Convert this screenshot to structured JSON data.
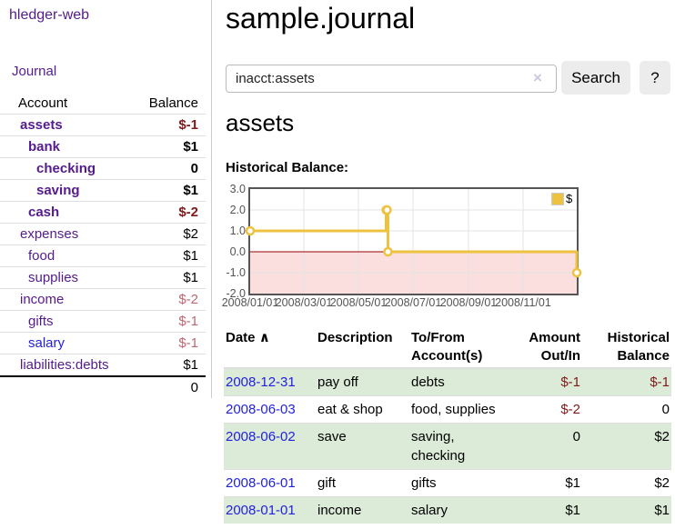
{
  "colors": {
    "link_purple": "#551b8d",
    "link_blue": "#2222dd",
    "negative": "#7f1a1a",
    "negative_dim": "#c06670",
    "row_stripe_green": "#dcead8",
    "chart_line_gold": "#EDC240",
    "chart_negative_fill": "#fbdfdf",
    "chart_zero_line": "#990000"
  },
  "app": {
    "title": "hledger-web"
  },
  "sidebar": {
    "journal_link": "Journal",
    "accounts": {
      "header": {
        "account": "Account",
        "balance": "Balance"
      },
      "rows": [
        {
          "name": "assets",
          "depth": 1,
          "bold": true,
          "balance": "$-1",
          "style": "neg"
        },
        {
          "name": "bank",
          "depth": 2,
          "bold": true,
          "balance": "$1",
          "style": "pos"
        },
        {
          "name": "checking",
          "depth": 3,
          "bold": true,
          "balance": "0",
          "style": "pos"
        },
        {
          "name": "saving",
          "depth": 3,
          "bold": true,
          "balance": "$1",
          "style": "pos"
        },
        {
          "name": "cash",
          "depth": 2,
          "bold": true,
          "balance": "$-2",
          "style": "neg"
        },
        {
          "name": "expenses",
          "depth": 1,
          "bold": false,
          "balance": "$2",
          "style": "pos"
        },
        {
          "name": "food",
          "depth": 2,
          "bold": false,
          "balance": "$1",
          "style": "pos"
        },
        {
          "name": "supplies",
          "depth": 2,
          "bold": false,
          "balance": "$1",
          "style": "pos"
        },
        {
          "name": "income",
          "depth": 1,
          "bold": false,
          "balance": "$-2",
          "style": "neg-dim"
        },
        {
          "name": "gifts",
          "depth": 2,
          "bold": false,
          "balance": "$-1",
          "style": "neg-dim"
        },
        {
          "name": "salary",
          "depth": 2,
          "bold": false,
          "balance": "$-1",
          "style": "neg-dim",
          "link": "blue"
        },
        {
          "name": "liabilities:debts",
          "depth": 1,
          "bold": false,
          "balance": "$1",
          "style": "pos"
        }
      ],
      "total": "0"
    }
  },
  "main": {
    "title": "sample.journal",
    "search": {
      "value": "inacct:assets",
      "clear_icon": "×",
      "button_label": "Search",
      "help_label": "?"
    },
    "account_heading": "assets",
    "chart_label": "Historical Balance:"
  },
  "chart_data": {
    "type": "line",
    "step": true,
    "title": "Historical Balance:",
    "series": [
      {
        "name": "$",
        "color": "#EDC240",
        "points": [
          [
            "2008-01-01",
            1
          ],
          [
            "2008-06-01",
            2
          ],
          [
            "2008-06-02",
            2
          ],
          [
            "2008-06-03",
            0
          ],
          [
            "2008-12-31",
            -1
          ]
        ]
      }
    ],
    "x_range": [
      "2008-01-01",
      "2008-12-31"
    ],
    "x_ticks": [
      "2008/01/01",
      "2008/03/01",
      "2008/05/01",
      "2008/07/01",
      "2008/09/01",
      "2008/11/01"
    ],
    "y_ticks": [
      3.0,
      2.0,
      1.0,
      0.0,
      -1.0,
      -2.0
    ],
    "ylim": [
      -2,
      3
    ],
    "grid": true,
    "negative_region_fill": "#fbdfdf",
    "zero_line_color": "#990000",
    "legend": {
      "label": "$",
      "position": "top-right"
    }
  },
  "register": {
    "headers": {
      "date": "Date",
      "sort_icon": "∧",
      "description": "Description",
      "account": [
        "To/From",
        "Account(s)"
      ],
      "amount": [
        "Amount",
        "Out/In"
      ],
      "balance": [
        "Historical",
        "Balance"
      ]
    },
    "rows": [
      {
        "date": "2008-12-31",
        "description": "pay off",
        "accounts": "debts",
        "amount": {
          "text": "$-1",
          "style": "neg"
        },
        "balance": {
          "text": "$-1",
          "style": "neg"
        }
      },
      {
        "date": "2008-06-03",
        "description": "eat & shop",
        "accounts": "food, supplies",
        "amount": {
          "text": "$-2",
          "style": "neg"
        },
        "balance": {
          "text": "0",
          "style": "pos"
        }
      },
      {
        "date": "2008-06-02",
        "description": "save",
        "accounts": "saving, checking",
        "amount": {
          "text": "0",
          "style": "pos"
        },
        "balance": {
          "text": "$2",
          "style": "pos"
        }
      },
      {
        "date": "2008-06-01",
        "description": "gift",
        "accounts": "gifts",
        "amount": {
          "text": "$1",
          "style": "pos"
        },
        "balance": {
          "text": "$2",
          "style": "pos"
        }
      },
      {
        "date": "2008-01-01",
        "description": "income",
        "accounts": "salary",
        "amount": {
          "text": "$1",
          "style": "pos"
        },
        "balance": {
          "text": "$1",
          "style": "pos"
        }
      }
    ]
  }
}
